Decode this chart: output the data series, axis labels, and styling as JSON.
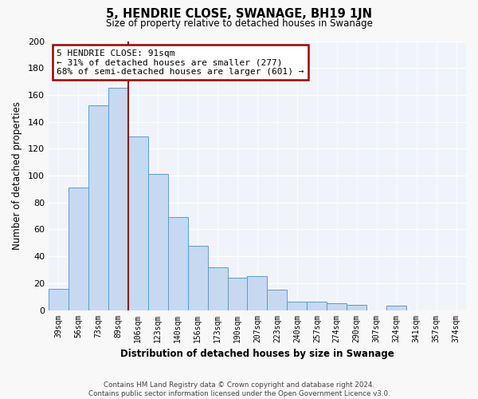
{
  "title": "5, HENDRIE CLOSE, SWANAGE, BH19 1JN",
  "subtitle": "Size of property relative to detached houses in Swanage",
  "xlabel": "Distribution of detached houses by size in Swanage",
  "ylabel": "Number of detached properties",
  "categories": [
    "39sqm",
    "56sqm",
    "73sqm",
    "89sqm",
    "106sqm",
    "123sqm",
    "140sqm",
    "156sqm",
    "173sqm",
    "190sqm",
    "207sqm",
    "223sqm",
    "240sqm",
    "257sqm",
    "274sqm",
    "290sqm",
    "307sqm",
    "324sqm",
    "341sqm",
    "357sqm",
    "374sqm"
  ],
  "values": [
    16,
    91,
    152,
    165,
    129,
    101,
    69,
    48,
    32,
    24,
    25,
    15,
    6,
    6,
    5,
    4,
    0,
    3,
    0,
    0,
    0
  ],
  "bar_color": "#c6d9f0",
  "bar_edge_color": "#5b9bd5",
  "highlight_index": 4,
  "highlight_line_color": "#8b1a1a",
  "annotation_title": "5 HENDRIE CLOSE: 91sqm",
  "annotation_line1": "← 31% of detached houses are smaller (277)",
  "annotation_line2": "68% of semi-detached houses are larger (601) →",
  "annotation_box_color": "#ffffff",
  "annotation_box_edge_color": "#a00000",
  "ylim": [
    0,
    200
  ],
  "yticks": [
    0,
    20,
    40,
    60,
    80,
    100,
    120,
    140,
    160,
    180,
    200
  ],
  "footer_line1": "Contains HM Land Registry data © Crown copyright and database right 2024.",
  "footer_line2": "Contains public sector information licensed under the Open Government Licence v3.0.",
  "bg_color": "#f0f4f8"
}
